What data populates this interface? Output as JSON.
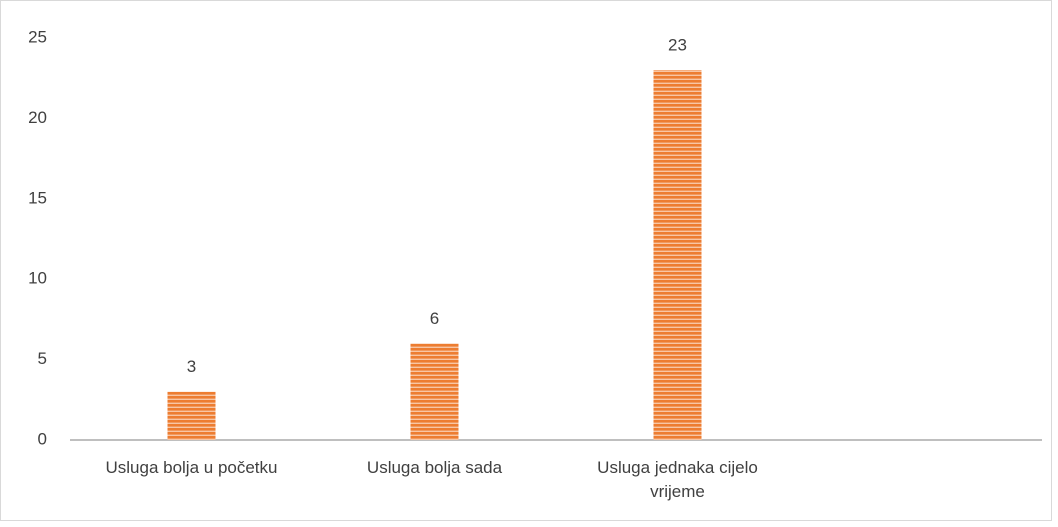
{
  "chart_data": {
    "type": "bar",
    "categories": [
      "Usluga bolja u početku",
      "Usluga bolja sada",
      "Usluga jednaka cijelo vrijeme",
      null
    ],
    "values": [
      3,
      6,
      23,
      null
    ],
    "color": "#ed7d31",
    "ylim": [
      0,
      25
    ],
    "yticks": [
      0,
      5,
      10,
      15,
      20,
      25
    ],
    "grid": false
  }
}
